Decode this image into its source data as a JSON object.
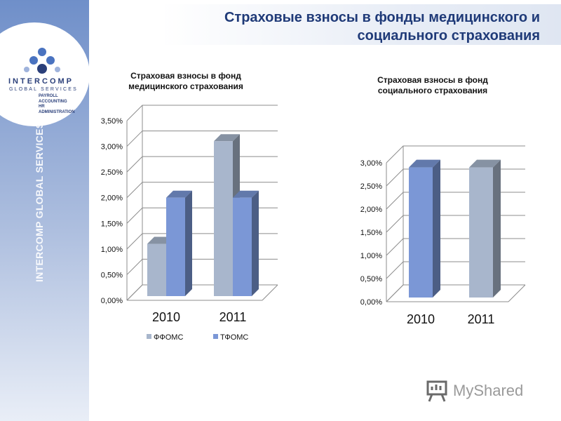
{
  "title": "Страховые взносы в фонды медицинского и социального страхования",
  "logo": {
    "brand": "INTERCOMP",
    "sub": "GLOBAL SERVICES",
    "services": [
      "PAYROLL",
      "ACCOUNTING",
      "HR ADMINISTRATION"
    ],
    "vertical_text": "INTERCOMP GLOBAL SERVICES"
  },
  "watermark": "MyShared",
  "colors": {
    "ffoms": "#a8b6cc",
    "tfoms": "#7b97d6"
  },
  "chart_data": [
    {
      "type": "bar",
      "title": "Страховая взносы в фонд медицинского страхования",
      "categories": [
        "2010",
        "2011"
      ],
      "series": [
        {
          "name": "ФФОМС",
          "values": [
            1.1,
            3.1
          ]
        },
        {
          "name": "ТФОМС",
          "values": [
            2.0,
            2.0
          ]
        }
      ],
      "ylim": [
        0,
        3.5
      ],
      "yticks": [
        "0,00%",
        "0,50%",
        "1,00%",
        "1,50%",
        "2,00%",
        "2,50%",
        "3,00%",
        "3,50%"
      ],
      "legend": "bottom",
      "grid": true
    },
    {
      "type": "bar",
      "title": "Страховая взносы в фонд социального страхования",
      "categories": [
        "2010",
        "2011"
      ],
      "values": [
        2.9,
        2.9
      ],
      "ylim": [
        0,
        3.0
      ],
      "yticks": [
        "0,00%",
        "0,50%",
        "1,00%",
        "1,50%",
        "2,00%",
        "2,50%",
        "3,00%"
      ],
      "grid": true
    }
  ]
}
